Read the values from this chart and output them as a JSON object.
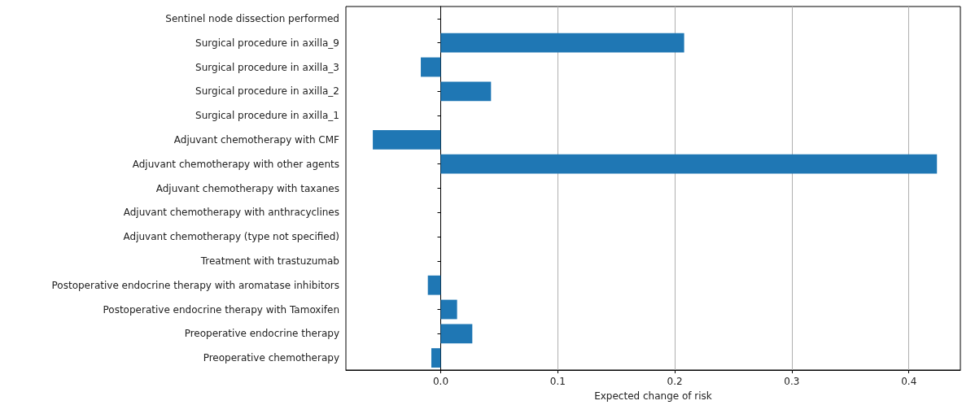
{
  "chart_data": {
    "type": "bar",
    "orientation": "horizontal",
    "xlabel": "Expected change of risk",
    "categories": [
      "Sentinel node dissection performed",
      "Surgical procedure in axilla_9",
      "Surgical procedure in axilla_3",
      "Surgical procedure in axilla_2",
      "Surgical procedure in axilla_1",
      "Adjuvant chemotherapy with CMF",
      "Adjuvant chemotherapy with other agents",
      "Adjuvant chemotherapy with taxanes",
      "Adjuvant chemotherapy with anthracyclines",
      "Adjuvant chemotherapy (type not specified)",
      "Treatment with trastuzumab",
      "Postoperative endocrine therapy with aromatase inhibitors",
      "Postoperative endocrine therapy with Tamoxifen",
      "Preoperative endocrine therapy",
      "Preoperative chemotherapy"
    ],
    "values": [
      0,
      0.208,
      -0.017,
      0.043,
      0,
      -0.058,
      0.424,
      0,
      0,
      0,
      0,
      -0.011,
      0.014,
      0.027,
      -0.008
    ],
    "color": "#1f77b4",
    "xlim": [
      -0.081,
      0.444
    ],
    "xticks": [
      {
        "value": 0,
        "label": "0.0"
      },
      0.1,
      0.2,
      0.3,
      0.4
    ],
    "grid": "x"
  }
}
